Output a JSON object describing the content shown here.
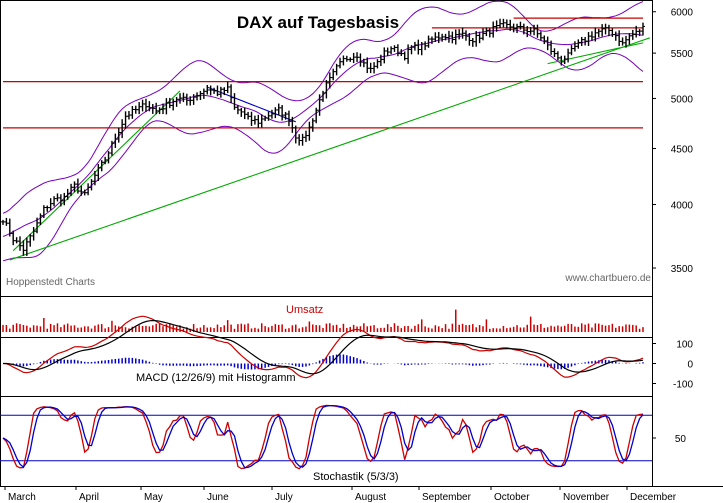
{
  "chart_data": [
    {
      "panel": "price",
      "type": "ohlc",
      "title": "DAX auf Tagesbasis",
      "source_left": "Hoppenstedt Charts",
      "source_right": "www.chartbuero.de",
      "yscale": "log",
      "ylim": [
        3300,
        6150
      ],
      "yticks": [
        3500,
        4000,
        4500,
        5000,
        5500,
        6000
      ],
      "months": [
        "March",
        "April",
        "May",
        "June",
        "July",
        "August",
        "September",
        "October",
        "November",
        "December"
      ],
      "grid": false,
      "close_path": [
        [
          0,
          3880
        ],
        [
          3,
          3720
        ],
        [
          6,
          3640
        ],
        [
          9,
          3780
        ],
        [
          12,
          3960
        ],
        [
          15,
          4040
        ],
        [
          18,
          4060
        ],
        [
          21,
          4160
        ],
        [
          24,
          4080
        ],
        [
          27,
          4250
        ],
        [
          30,
          4400
        ],
        [
          33,
          4600
        ],
        [
          36,
          4820
        ],
        [
          39,
          4880
        ],
        [
          42,
          4940
        ],
        [
          45,
          4870
        ],
        [
          48,
          4930
        ],
        [
          51,
          5000
        ],
        [
          54,
          4980
        ],
        [
          57,
          5040
        ],
        [
          60,
          5100
        ],
        [
          63,
          5060
        ],
        [
          66,
          5100
        ],
        [
          68,
          4900
        ],
        [
          70,
          4860
        ],
        [
          72,
          4790
        ],
        [
          75,
          4760
        ],
        [
          78,
          4830
        ],
        [
          81,
          4880
        ],
        [
          84,
          4790
        ],
        [
          86,
          4620
        ],
        [
          88,
          4580
        ],
        [
          90,
          4700
        ],
        [
          92,
          4880
        ],
        [
          94,
          5080
        ],
        [
          96,
          5200
        ],
        [
          98,
          5330
        ],
        [
          100,
          5420
        ],
        [
          102,
          5460
        ],
        [
          104,
          5480
        ],
        [
          106,
          5380
        ],
        [
          108,
          5310
        ],
        [
          110,
          5390
        ],
        [
          112,
          5500
        ],
        [
          114,
          5560
        ],
        [
          116,
          5520
        ],
        [
          118,
          5470
        ],
        [
          120,
          5560
        ],
        [
          123,
          5580
        ],
        [
          126,
          5660
        ],
        [
          129,
          5710
        ],
        [
          132,
          5690
        ],
        [
          135,
          5720
        ],
        [
          138,
          5660
        ],
        [
          141,
          5720
        ],
        [
          144,
          5790
        ],
        [
          147,
          5830
        ],
        [
          150,
          5810
        ],
        [
          153,
          5780
        ],
        [
          156,
          5760
        ],
        [
          158,
          5690
        ],
        [
          160,
          5580
        ],
        [
          162,
          5480
        ],
        [
          164,
          5420
        ],
        [
          166,
          5470
        ],
        [
          168,
          5570
        ],
        [
          170,
          5630
        ],
        [
          172,
          5690
        ],
        [
          174,
          5740
        ],
        [
          176,
          5770
        ],
        [
          178,
          5770
        ],
        [
          180,
          5710
        ],
        [
          182,
          5610
        ],
        [
          184,
          5700
        ],
        [
          186,
          5740
        ],
        [
          188,
          5800
        ]
      ],
      "bollinger_width": 0.1,
      "resistance_lines": [
        {
          "from": 0,
          "to": 188,
          "level": 5180,
          "color": "#cc0000"
        },
        {
          "from": 0,
          "to": 188,
          "level": 4700,
          "color": "#cc0000"
        },
        {
          "from": 126,
          "to": 188,
          "level": 5800,
          "color": "#cc0000"
        },
        {
          "from": 150,
          "to": 188,
          "level": 5920,
          "color": "#cc0000"
        }
      ],
      "trend_lines": [
        {
          "points": [
            [
              2,
              3560
            ],
            [
              190,
              5680
            ]
          ],
          "color": "#00aa00"
        },
        {
          "points": [
            [
              3,
              3630
            ],
            [
              52,
              5080
            ]
          ],
          "color": "#00aa00"
        },
        {
          "points": [
            [
              160,
              5380
            ],
            [
              188,
              5620
            ]
          ],
          "color": "#00aa00"
        },
        {
          "points": [
            [
              60,
              5120
            ],
            [
              86,
              4760
            ]
          ],
          "color": "#0000cc"
        }
      ]
    },
    {
      "panel": "volume",
      "type": "bar",
      "label": "Umsatz",
      "color": "#cc0000",
      "volume_base": 0.45,
      "volume_spikes": [
        [
          12,
          1.0
        ],
        [
          32,
          0.8
        ],
        [
          66,
          0.85
        ],
        [
          90,
          0.75
        ],
        [
          123,
          0.9
        ],
        [
          133,
          1.6
        ],
        [
          142,
          0.9
        ],
        [
          155,
          1.1
        ]
      ]
    },
    {
      "panel": "macd",
      "type": "line",
      "label": "MACD (12/26/9) mit Histogramm",
      "yticks": [
        100,
        0,
        -100
      ],
      "ylim": [
        -200,
        200
      ],
      "series": [
        {
          "color": "#cc0000"
        },
        {
          "color": "#000000"
        },
        {
          "color": "#0000cc"
        }
      ]
    },
    {
      "panel": "stochastic",
      "type": "line",
      "label": "Stochastik (5/3/3)",
      "yticks": [
        50
      ],
      "ylim": [
        0,
        100
      ],
      "hlines": [
        80,
        20
      ],
      "series": [
        {
          "color": "#cc0000"
        },
        {
          "color": "#0000cc"
        }
      ]
    }
  ],
  "colors": {
    "bars": "#000000",
    "bollinger": "#7700bb",
    "panel_border": "#000000"
  }
}
